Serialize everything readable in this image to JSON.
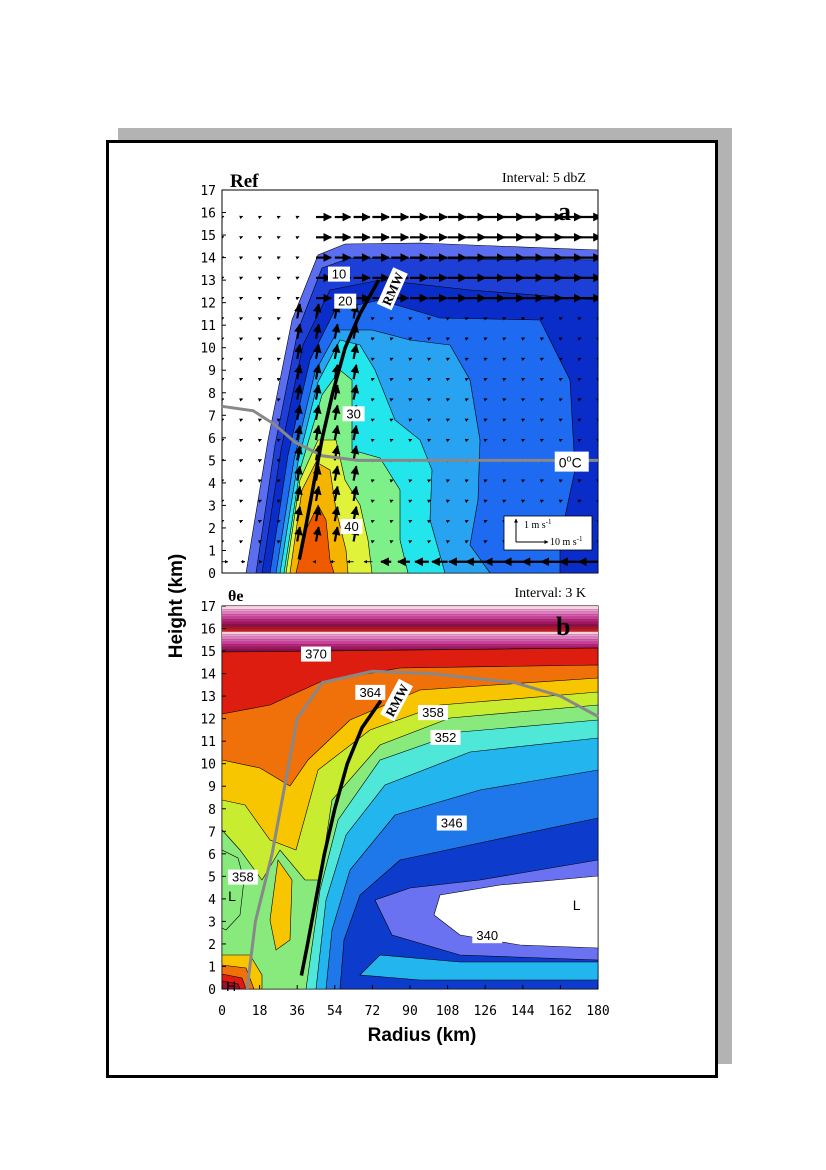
{
  "chart_data": [
    {
      "type": "heatmap",
      "panel_letter": "a",
      "variable": "Ref",
      "interval": "Interval: 5 dbZ",
      "ylabel": "Height (km)",
      "xlim": [
        0,
        180
      ],
      "ylim": [
        0,
        17
      ],
      "y_ticks": [
        0,
        1,
        2,
        3,
        4,
        5,
        6,
        7,
        8,
        9,
        10,
        11,
        12,
        13,
        14,
        15,
        16,
        17
      ],
      "contour_labels": [
        {
          "text": "10",
          "x": 56,
          "y": 13.2
        },
        {
          "text": "20",
          "x": 59,
          "y": 12.0
        },
        {
          "text": "30",
          "x": 63,
          "y": 7.0
        },
        {
          "text": "40",
          "x": 62,
          "y": 2.0
        }
      ],
      "annotations": [
        {
          "text": "RMW",
          "x": 82,
          "y": 12.6
        },
        {
          "text": "0",
          "sup": "o",
          "tail": "C",
          "x": 166,
          "y": 4.9
        }
      ],
      "vector_scale": {
        "vertical": "1 m s",
        "horizontal": "10 m s",
        "exp": "-1"
      },
      "curves": {
        "rmw": [
          [
            37,
            0.6
          ],
          [
            40,
            2
          ],
          [
            44,
            4
          ],
          [
            48,
            6
          ],
          [
            53,
            8
          ],
          [
            59,
            10
          ],
          [
            66,
            11.5
          ],
          [
            75,
            13
          ]
        ],
        "freezing_level": [
          [
            0,
            7.4
          ],
          [
            15,
            7.2
          ],
          [
            25,
            6.6
          ],
          [
            35,
            5.8
          ],
          [
            48,
            5.2
          ],
          [
            65,
            5.0
          ],
          [
            100,
            5.0
          ],
          [
            180,
            5.0
          ]
        ]
      }
    },
    {
      "type": "heatmap",
      "panel_letter": "b",
      "variable": "θe",
      "interval": "Interval: 3 K",
      "xlabel": "Radius (km)",
      "ylabel": "Height (km)",
      "xlim": [
        0,
        180
      ],
      "ylim": [
        0,
        17
      ],
      "x_ticks": [
        0,
        18,
        36,
        54,
        72,
        90,
        108,
        126,
        144,
        162,
        180
      ],
      "y_ticks": [
        0,
        1,
        2,
        3,
        4,
        5,
        6,
        7,
        8,
        9,
        10,
        11,
        12,
        13,
        14,
        15,
        16,
        17
      ],
      "contour_labels": [
        {
          "text": "370",
          "x": 45,
          "y": 14.8
        },
        {
          "text": "364",
          "x": 71,
          "y": 13.1
        },
        {
          "text": "358",
          "x": 101,
          "y": 12.2
        },
        {
          "text": "352",
          "x": 107,
          "y": 11.1
        },
        {
          "text": "346",
          "x": 110,
          "y": 7.3
        },
        {
          "text": "358",
          "x": 10,
          "y": 4.9
        },
        {
          "text": "340",
          "x": 127,
          "y": 2.3
        }
      ],
      "annotations": [
        {
          "text": "RMW",
          "x": 84,
          "y": 12.8
        },
        {
          "text": "L",
          "x": 1,
          "y": 4.0
        },
        {
          "text": "L",
          "x": 166,
          "y": 3.6
        },
        {
          "text": "H",
          "x": 0,
          "y": 0
        }
      ],
      "curves": {
        "rmw": [
          [
            38,
            0.6
          ],
          [
            41,
            2
          ],
          [
            45,
            4
          ],
          [
            49,
            6
          ],
          [
            54,
            8
          ],
          [
            60,
            10
          ],
          [
            67,
            11.6
          ],
          [
            76,
            12.8
          ]
        ],
        "gray": [
          [
            12,
            0
          ],
          [
            16,
            3
          ],
          [
            24,
            6
          ],
          [
            30,
            9
          ],
          [
            36,
            12
          ],
          [
            48,
            13.6
          ],
          [
            72,
            14.1
          ],
          [
            100,
            14.0
          ],
          [
            140,
            13.6
          ],
          [
            162,
            13.0
          ],
          [
            180,
            12.1
          ]
        ]
      }
    }
  ]
}
